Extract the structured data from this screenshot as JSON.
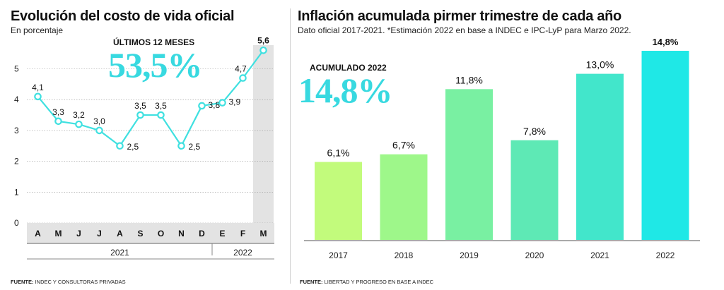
{
  "left": {
    "title": "Evolución del costo de vida oficial",
    "subtitle": "En porcentaje",
    "highlight_label": "ÚLTIMOS 12 MESES",
    "highlight_value": "53,5%",
    "source_label": "FUENTE:",
    "source_text": "INDEC Y CONSULTORAS PRIVADAS"
  },
  "right": {
    "title": "Inflación acumulada pirmer trimestre de cada año",
    "subtitle": "Dato oficial 2017-2021. *Estimación 2022 en base a INDEC e IPC-LyP para Marzo 2022.",
    "highlight_label": "ACUMULADO 2022",
    "highlight_value": "14,8%",
    "source_label": "FUENTE:",
    "source_text": "LIBERTAD Y PROGRESO EN BASE A INDEC"
  },
  "colors": {
    "line": "#3fe0e0",
    "highlight": "#38d9e0",
    "band": "#e3e3e3",
    "grid": "#9a9a9a"
  },
  "chart_data": [
    {
      "type": "line",
      "categories": [
        "A",
        "M",
        "J",
        "J",
        "A",
        "S",
        "O",
        "N",
        "D",
        "E",
        "F",
        "M"
      ],
      "values": [
        4.1,
        3.3,
        3.2,
        3.0,
        2.5,
        3.5,
        3.5,
        2.5,
        3.8,
        3.9,
        4.7,
        5.6
      ],
      "labels": [
        "4,1",
        "3,3",
        "3,2",
        "3,0",
        "2,5",
        "3,5",
        "3,5",
        "2,5",
        "3,8",
        "3,9",
        "4,7",
        "5,6"
      ],
      "yticks": [
        "0",
        "1",
        "2",
        "3",
        "4",
        "5"
      ],
      "ylim": [
        0,
        5.6
      ],
      "year_groups": [
        {
          "label": "2021",
          "from": 0,
          "to": 8
        },
        {
          "label": "2022",
          "from": 9,
          "to": 11
        }
      ],
      "highlighted_index": 11,
      "grid": true
    },
    {
      "type": "bar",
      "categories": [
        "2017",
        "2018",
        "2019",
        "2020",
        "2021",
        "2022"
      ],
      "values": [
        6.1,
        6.7,
        11.8,
        7.8,
        13.0,
        14.8
      ],
      "labels": [
        "6,1%",
        "6,7%",
        "11,8%",
        "7,8%",
        "13,0%",
        "14,8%"
      ],
      "colors": [
        "#c2fb7c",
        "#9ef78a",
        "#79f0a2",
        "#5ee9b5",
        "#42e6cb",
        "#1fe8e6"
      ],
      "highlighted_index": 5,
      "ylim": [
        0,
        15
      ]
    }
  ]
}
